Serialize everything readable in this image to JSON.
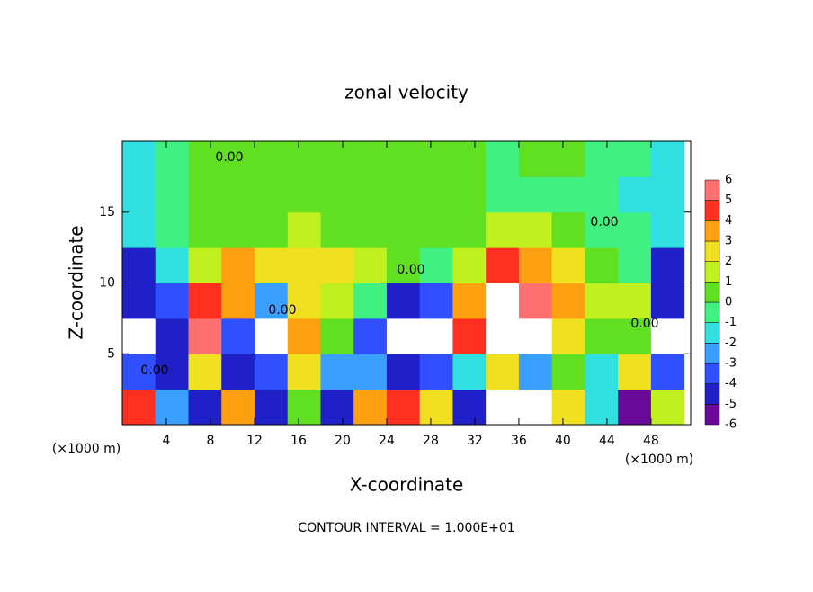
{
  "chart_data": {
    "type": "heatmap",
    "title": "zonal velocity",
    "x_label": "X-coordinate",
    "y_label": "Z-coordinate",
    "x_unit": "(×1000 m)",
    "y_unit": "(×1000 m)",
    "footer": "CONTOUR INTERVAL = 1.000E+01",
    "contour_label": "0.00",
    "xlim": [
      0,
      51.6
    ],
    "ylim": [
      0,
      20
    ],
    "xticks": [
      4,
      8,
      12,
      16,
      20,
      24,
      28,
      32,
      36,
      40,
      44,
      48
    ],
    "yticks": [
      5,
      10,
      15
    ],
    "x": [
      1.5,
      4.5,
      7.5,
      10.5,
      13.5,
      16.5,
      19.5,
      22.5,
      25.5,
      28.5,
      31.5,
      34.5,
      37.5,
      40.5,
      43.5,
      46.5,
      49.5
    ],
    "y": [
      1.25,
      3.75,
      6.25,
      8.75,
      11.25,
      13.75,
      16.25,
      18.75
    ],
    "values": [
      [
        5,
        -2,
        -4,
        4,
        -4,
        1,
        -4,
        4,
        5,
        3,
        -4,
        7,
        7,
        3,
        -1,
        -5,
        2
      ],
      [
        -3,
        -4,
        3,
        -4,
        -3,
        3,
        -2,
        -2,
        -4,
        -3,
        -1,
        3,
        -2,
        1,
        -1,
        3,
        -3
      ],
      [
        7,
        -4,
        6,
        -3,
        -7,
        4,
        1,
        -3,
        -7,
        -7,
        5,
        7,
        7,
        3,
        1,
        0.5,
        7
      ],
      [
        -4.5,
        -3,
        5,
        3.5,
        -2,
        3,
        2,
        -0.5,
        -4,
        -3,
        4,
        7,
        6,
        4,
        1.5,
        2,
        -4
      ],
      [
        -4,
        -1,
        2,
        3.5,
        3,
        3,
        2.5,
        1.5,
        0.5,
        0,
        2,
        4.5,
        4,
        2.5,
        1,
        0,
        -4
      ],
      [
        -1.5,
        0,
        0.5,
        1,
        1,
        1.5,
        1,
        0.5,
        0.5,
        0.5,
        1,
        2,
        1.5,
        1,
        0,
        -0.5,
        -1.5
      ],
      [
        -1.5,
        -0.5,
        0.5,
        0.5,
        1,
        1,
        1,
        1,
        0.5,
        0.5,
        0.5,
        0,
        -0.5,
        0,
        -0.5,
        -1,
        -1.5
      ],
      [
        -1,
        0,
        0.5,
        0.5,
        0.5,
        1,
        1,
        1,
        0.5,
        0.5,
        0.5,
        0,
        0.5,
        0.5,
        0,
        -0.5,
        -1
      ]
    ],
    "colorbar": {
      "levels": [
        -6,
        -5,
        -4,
        -3,
        -2,
        -1,
        0,
        1,
        2,
        3,
        4,
        5,
        6
      ],
      "colors": [
        "#6a0a9a",
        "#2020c8",
        "#3050ff",
        "#3aa0ff",
        "#30e0e0",
        "#40f080",
        "#60e020",
        "#c0f020",
        "#f0e020",
        "#ffa010",
        "#ff3020",
        "#ff7070"
      ],
      "out_of_range_color": "#ffffff"
    }
  }
}
